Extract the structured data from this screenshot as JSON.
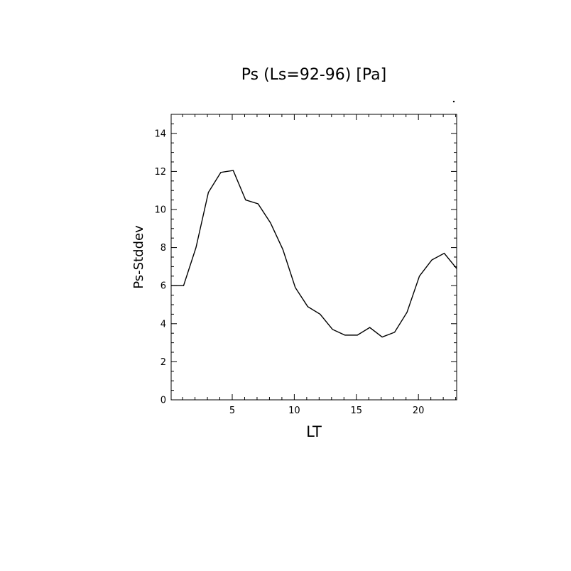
{
  "chart_data": {
    "type": "line",
    "title": "Ps (Ls=92-96) [Pa]",
    "xlabel": "LT",
    "ylabel": "Ps-Stddev",
    "xlim": [
      0.08,
      23.08
    ],
    "ylim": [
      0,
      15
    ],
    "x_ticks": [
      5,
      10,
      15,
      20
    ],
    "y_ticks": [
      0,
      2,
      4,
      6,
      8,
      10,
      12,
      14
    ],
    "grid": false,
    "series": [
      {
        "x": [
          0.08,
          1.08,
          2.08,
          3.08,
          4.08,
          5.08,
          6.08,
          7.08,
          8.08,
          9.08,
          10.08,
          11.08,
          12.08,
          13.08,
          14.08,
          15.08,
          16.08,
          17.08,
          18.08,
          19.08,
          20.08,
          21.08,
          22.08,
          23.08
        ],
        "values": [
          6.0,
          6.0,
          8.0,
          10.9,
          11.95,
          12.05,
          10.5,
          10.3,
          9.3,
          7.9,
          5.9,
          4.9,
          4.5,
          3.7,
          3.4,
          3.4,
          3.8,
          3.3,
          3.55,
          4.6,
          6.5,
          7.35,
          7.7,
          6.9
        ]
      }
    ]
  }
}
